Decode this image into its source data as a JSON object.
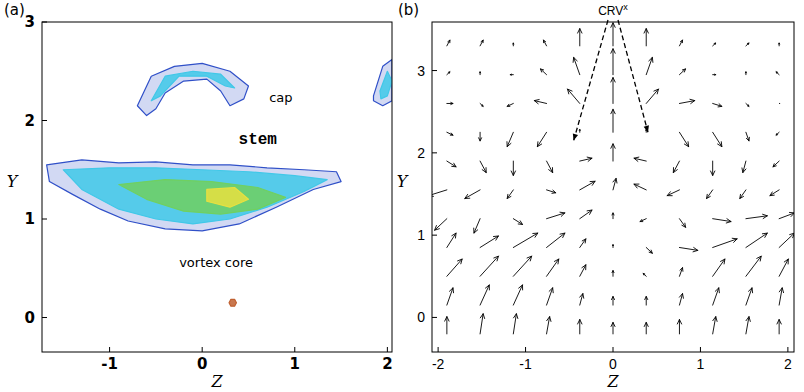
{
  "chart_data": [
    {
      "type": "contour",
      "panel_label": "(a)",
      "xlabel": "Z",
      "ylabel": "Y",
      "xlim": [
        -1.73,
        2.05
      ],
      "ylim": [
        -0.35,
        3.0
      ],
      "xticks": [
        -1,
        0,
        1,
        2
      ],
      "yticks": [
        0,
        1,
        2,
        3
      ],
      "contours": [
        {
          "color": "#3050c8",
          "polygons": [
            {
              "z": [
                -1.68,
                -1.3,
                -0.9,
                -0.5,
                -0.1,
                0.3,
                0.7,
                1.1,
                1.45,
                1.5,
                1.2,
                0.8,
                0.4,
                0.0,
                -0.4,
                -0.8,
                -1.1,
                -1.4,
                -1.65
              ],
              "y": [
                1.55,
                1.6,
                1.57,
                1.58,
                1.55,
                1.55,
                1.52,
                1.5,
                1.48,
                1.38,
                1.3,
                1.12,
                0.95,
                0.88,
                0.9,
                0.98,
                1.1,
                1.25,
                1.38
              ]
            },
            {
              "z": [
                -0.7,
                -0.55,
                -0.3,
                0.0,
                0.3,
                0.5,
                0.45,
                0.3,
                0.2,
                0.05,
                -0.2,
                -0.4,
                -0.5,
                -0.6
              ],
              "y": [
                2.15,
                2.45,
                2.55,
                2.58,
                2.5,
                2.35,
                2.22,
                2.15,
                2.3,
                2.42,
                2.4,
                2.28,
                2.12,
                2.05
              ]
            },
            {
              "z": [
                1.85,
                1.95,
                2.05,
                2.05,
                1.95,
                1.85
              ],
              "y": [
                2.25,
                2.55,
                2.62,
                2.2,
                2.15,
                2.2
              ]
            }
          ]
        },
        {
          "color": "#40c8e8",
          "polygons": [
            {
              "z": [
                -1.5,
                -1.0,
                -0.5,
                0.0,
                0.5,
                1.0,
                1.35,
                1.1,
                0.7,
                0.3,
                -0.1,
                -0.5,
                -0.9,
                -1.3
              ],
              "y": [
                1.5,
                1.52,
                1.52,
                1.5,
                1.48,
                1.44,
                1.4,
                1.28,
                1.12,
                1.0,
                0.95,
                1.0,
                1.1,
                1.3
              ]
            },
            {
              "z": [
                -0.55,
                -0.4,
                -0.1,
                0.2,
                0.35,
                0.25,
                0.05,
                -0.25,
                -0.45
              ],
              "y": [
                2.2,
                2.45,
                2.5,
                2.47,
                2.33,
                2.35,
                2.45,
                2.45,
                2.25
              ]
            },
            {
              "z": [
                1.92,
                2.0,
                2.05,
                2.0,
                1.93
              ],
              "y": [
                2.3,
                2.5,
                2.4,
                2.25,
                2.22
              ]
            }
          ]
        },
        {
          "color": "#70d060",
          "polygons": [
            {
              "z": [
                -0.9,
                -0.4,
                0.1,
                0.6,
                0.9,
                0.6,
                0.2,
                -0.2,
                -0.6
              ],
              "y": [
                1.35,
                1.4,
                1.38,
                1.32,
                1.22,
                1.1,
                1.05,
                1.08,
                1.2
              ]
            }
          ]
        },
        {
          "color": "#e8e040",
          "polygons": [
            {
              "z": [
                0.05,
                0.35,
                0.5,
                0.3,
                0.05
              ],
              "y": [
                1.3,
                1.32,
                1.2,
                1.12,
                1.18
              ]
            }
          ]
        },
        {
          "color": "#c06030",
          "polygons": [
            {
              "z": [
                0.37,
                0.35,
                0.31,
                0.29,
                0.31,
                0.35
              ],
              "y": [
                0.15,
                0.185,
                0.185,
                0.15,
                0.115,
                0.115
              ]
            }
          ]
        }
      ],
      "annotations": [
        {
          "text": "cap",
          "z": 0.85,
          "y": 2.22
        },
        {
          "text": "stem",
          "z": 0.6,
          "y": 1.8
        },
        {
          "text": "vortex core",
          "z": 0.15,
          "y": 0.55
        }
      ]
    },
    {
      "type": "quiver",
      "panel_label": "(b)",
      "xlabel": "Z",
      "ylabel": "Y",
      "xlim": [
        -2.07,
        2.07
      ],
      "ylim": [
        -0.42,
        3.59
      ],
      "xticks": [
        -2,
        -1,
        0,
        1,
        2
      ],
      "yticks": [
        0,
        1,
        2,
        3
      ],
      "z": [
        -1.9,
        -1.52,
        -1.14,
        -0.76,
        -0.38,
        0,
        0.38,
        0.76,
        1.14,
        1.52,
        1.9
      ],
      "y": [
        -0.2,
        0.15,
        0.5,
        0.85,
        1.2,
        1.55,
        1.9,
        2.25,
        2.6,
        2.95,
        3.3
      ],
      "u": [
        [
          0.0,
          0.1,
          0.1,
          0.1,
          0.0,
          0.0,
          0.0,
          0.0,
          0.1,
          0.1,
          0.0
        ],
        [
          0.2,
          0.3,
          0.3,
          0.2,
          0.1,
          0.0,
          0.0,
          0.1,
          0.2,
          0.2,
          0.1
        ],
        [
          0.5,
          0.6,
          0.6,
          0.4,
          0.2,
          0.0,
          -0.1,
          0.1,
          0.4,
          0.5,
          0.3
        ],
        [
          0.3,
          0.6,
          0.8,
          0.6,
          0.2,
          0.0,
          0.2,
          0.6,
          0.8,
          0.7,
          0.5
        ],
        [
          -0.4,
          -0.2,
          0.3,
          0.6,
          0.4,
          0.0,
          -0.2,
          0.2,
          0.6,
          0.7,
          0.5
        ],
        [
          -0.6,
          -0.5,
          -0.2,
          0.3,
          0.5,
          0.1,
          -0.4,
          -0.4,
          -0.2,
          -0.2,
          -0.3
        ],
        [
          0.3,
          0.2,
          0.0,
          0.2,
          0.4,
          0.0,
          -0.4,
          -0.2,
          0.0,
          -0.1,
          -0.2
        ],
        [
          0.2,
          0.0,
          -0.2,
          -0.3,
          0.0,
          0.0,
          0.0,
          0.3,
          0.3,
          0.1,
          -0.1
        ],
        [
          0.2,
          0.1,
          -0.2,
          -0.4,
          -0.4,
          0.0,
          0.4,
          0.5,
          0.3,
          0.1,
          0.0
        ],
        [
          0.1,
          0.0,
          -0.1,
          -0.2,
          -0.2,
          0.0,
          0.2,
          0.2,
          0.1,
          0.0,
          -0.1
        ],
        [
          0.1,
          0.1,
          0.0,
          -0.1,
          0.0,
          0.0,
          0.0,
          0.1,
          0.1,
          0.1,
          0.0
        ]
      ],
      "v": [
        [
          0.6,
          0.7,
          0.7,
          0.6,
          0.5,
          0.4,
          0.4,
          0.5,
          0.6,
          0.6,
          0.5
        ],
        [
          0.6,
          0.7,
          0.7,
          0.6,
          0.4,
          0.3,
          0.3,
          0.4,
          0.6,
          0.6,
          0.6
        ],
        [
          0.6,
          0.7,
          0.7,
          0.6,
          0.4,
          0.2,
          0.1,
          0.3,
          0.6,
          0.7,
          0.6
        ],
        [
          0.5,
          0.4,
          0.5,
          0.5,
          0.3,
          0.1,
          -0.2,
          -0.1,
          0.3,
          0.5,
          0.5
        ],
        [
          -0.4,
          -0.5,
          -0.2,
          0.2,
          0.3,
          0.2,
          -0.1,
          -0.3,
          -0.1,
          0.1,
          0.2
        ],
        [
          -0.2,
          -0.3,
          -0.3,
          -0.1,
          0.3,
          0.4,
          0.2,
          -0.2,
          -0.3,
          -0.3,
          -0.2
        ],
        [
          -0.2,
          -0.4,
          -0.5,
          -0.4,
          0.1,
          0.6,
          0.1,
          -0.4,
          -0.5,
          -0.4,
          -0.2
        ],
        [
          -0.1,
          -0.3,
          -0.5,
          -0.5,
          0.1,
          0.8,
          0.1,
          -0.5,
          -0.5,
          -0.3,
          -0.1
        ],
        [
          0.0,
          -0.1,
          -0.1,
          0.1,
          0.5,
          0.9,
          0.5,
          0.1,
          -0.1,
          -0.1,
          0.0
        ],
        [
          0.1,
          0.1,
          0.0,
          0.2,
          0.6,
          0.9,
          0.6,
          0.2,
          0.0,
          0.1,
          0.1
        ],
        [
          0.2,
          0.2,
          0.1,
          0.2,
          0.6,
          0.8,
          0.6,
          0.2,
          0.1,
          0.1,
          0.1
        ]
      ],
      "annotation": {
        "text": "CRV",
        "superscript": "x",
        "targets": [
          {
            "z": -0.45,
            "y": 2.15
          },
          {
            "z": 0.4,
            "y": 2.25
          }
        ]
      }
    }
  ]
}
